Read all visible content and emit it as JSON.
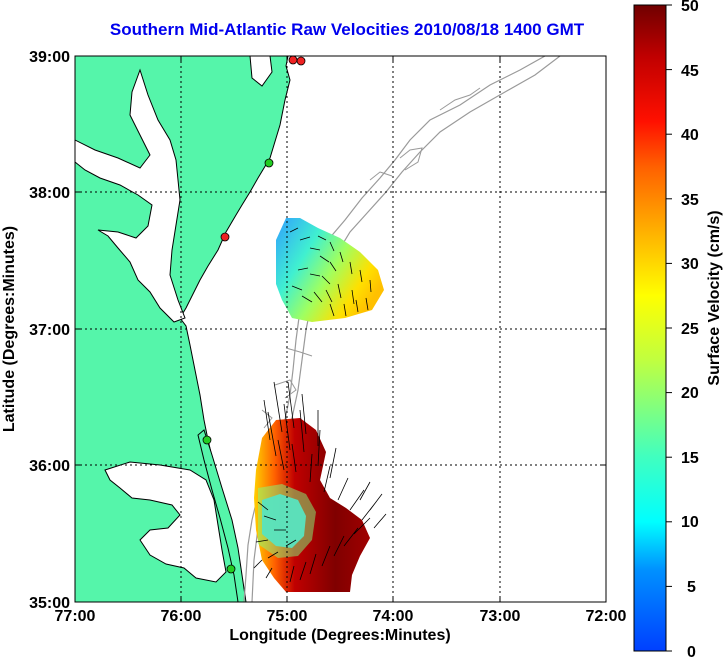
{
  "title": "Southern Mid-Atlantic Raw Velocities 2010/08/18 1400 GMT",
  "x_axis": {
    "label": "Longitude (Degrees:Minutes)",
    "ticks": [
      "77:00",
      "76:00",
      "75:00",
      "74:00",
      "73:00",
      "72:00"
    ],
    "range": [
      -77,
      -72
    ]
  },
  "y_axis": {
    "label": "Latitude (Degrees:Minutes)",
    "ticks": [
      "39:00",
      "38:00",
      "37:00",
      "36:00",
      "35:00"
    ],
    "range": [
      35,
      39
    ]
  },
  "colorbar": {
    "label": "Surface Velocity (cm/s)",
    "ticks": [
      "50",
      "45",
      "40",
      "35",
      "30",
      "25",
      "20",
      "15",
      "10",
      "5",
      "0"
    ],
    "range": [
      0,
      50
    ],
    "colormap": "jet"
  },
  "colors": {
    "land": "#55f5aa",
    "coastline": "#000000",
    "bathymetry": "#9a9a9a",
    "title": "#0000ee",
    "station_active": "#22cc22",
    "station_inactive": "#ee2222"
  },
  "stations": [
    {
      "lon": -74.93,
      "lat": 38.96,
      "status": "inactive"
    },
    {
      "lon": -74.88,
      "lat": 38.97,
      "status": "inactive"
    },
    {
      "lon": -75.09,
      "lat": 38.22,
      "status": "active"
    },
    {
      "lon": -75.48,
      "lat": 37.68,
      "status": "inactive"
    },
    {
      "lon": -75.66,
      "lat": 36.19,
      "status": "active"
    },
    {
      "lon": -75.47,
      "lat": 35.25,
      "status": "active"
    }
  ],
  "grid": true,
  "velocity_fields": [
    {
      "region": "north",
      "lon_range": [
        -75.2,
        -74.1
      ],
      "lat_range": [
        37.05,
        37.8
      ],
      "speed_range_cms": [
        8,
        30
      ]
    },
    {
      "region": "south",
      "lon_range": [
        -75.45,
        -74.05
      ],
      "lat_range": [
        35.1,
        36.45
      ],
      "speed_range_cms": [
        10,
        50
      ]
    }
  ]
}
